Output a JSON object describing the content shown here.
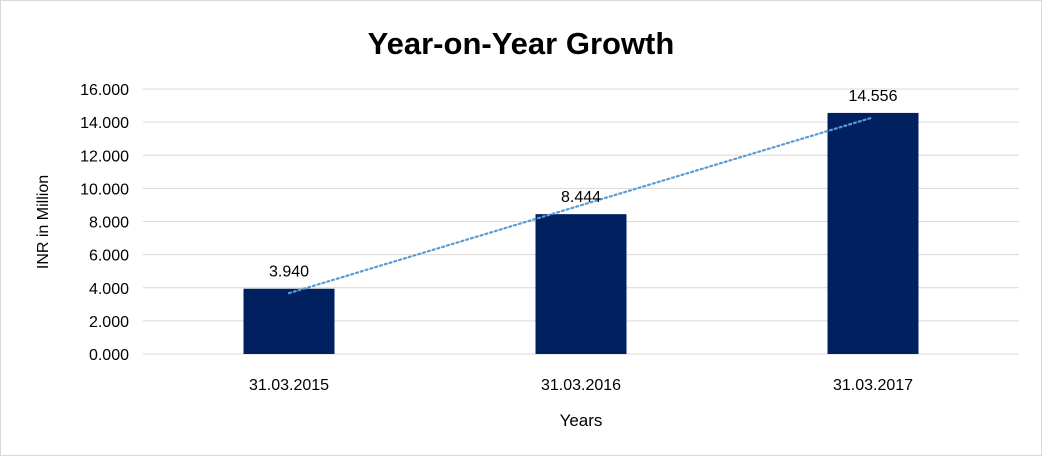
{
  "chart_data": {
    "type": "bar",
    "title": "Year-on-Year Growth",
    "xlabel": "Years",
    "ylabel": "INR in Million",
    "categories": [
      "31.03.2015",
      "31.03.2016",
      "31.03.2017"
    ],
    "values": [
      3.94,
      8.444,
      14.556
    ],
    "data_labels": [
      "3.940",
      "8.444",
      "14.556"
    ],
    "ylim": [
      0,
      16
    ],
    "yticks": [
      0,
      2,
      4,
      6,
      8,
      10,
      12,
      14,
      16
    ],
    "ytick_labels": [
      "0.000",
      "2.000",
      "4.000",
      "6.000",
      "8.000",
      "10.000",
      "12.000",
      "14.000",
      "16.000"
    ],
    "grid": true,
    "legend": "none",
    "trendline": "linear",
    "colors": {
      "bar": "#002060",
      "trendline": "#5b9bd5",
      "grid": "#d9d9d9",
      "text": "#000000"
    }
  }
}
